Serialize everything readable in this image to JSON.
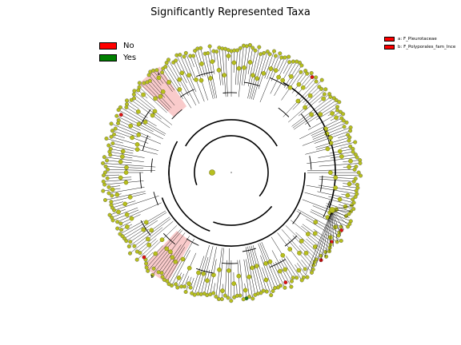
{
  "title": "Significantly Represented Taxa",
  "legend": {
    "left": [
      {
        "label": "No",
        "color": "#ff0000"
      },
      {
        "label": "Yes",
        "color": "#008000"
      }
    ],
    "right": [
      {
        "label": "a: F_Pleurotaceae",
        "color": "#ff0000"
      },
      {
        "label": "b: F_Polyporales_fam_Ince",
        "color": "#ff0000"
      }
    ]
  },
  "colors": {
    "node": "#b7bf1e",
    "highlight_red": "#dd1010",
    "highlight_green": "#1d7a1d",
    "clade_shade": "#f4a0a0"
  },
  "clade_labels": [
    "a",
    "b"
  ]
}
